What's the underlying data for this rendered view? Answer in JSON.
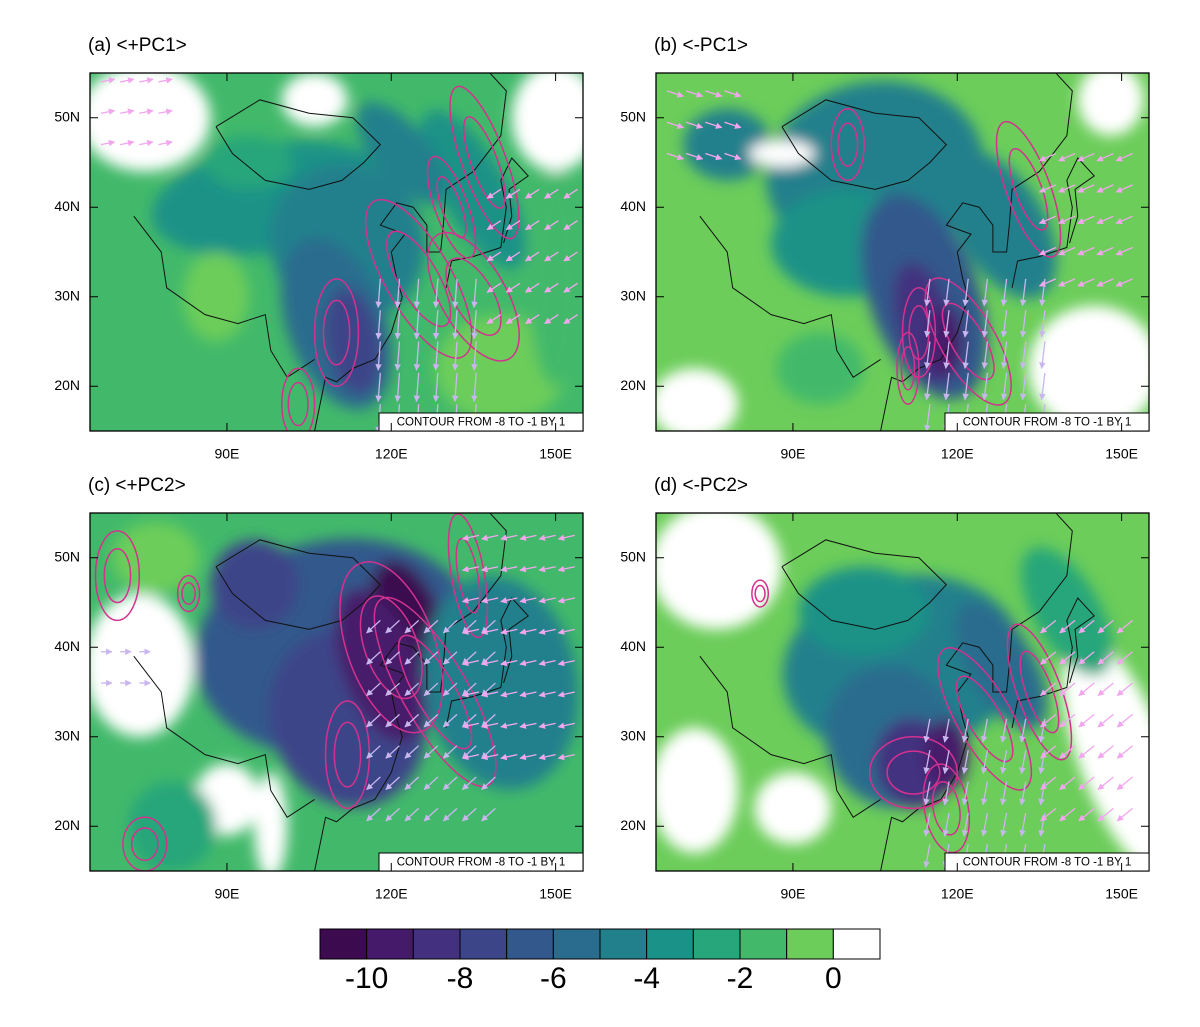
{
  "panels": [
    {
      "title": "(a) <+PC1>",
      "info": "CONTOUR FROM -8 TO -1 BY 1"
    },
    {
      "title": "(b) <-PC1>",
      "info": "CONTOUR FROM -8 TO -1 BY 1"
    },
    {
      "title": "(c) <+PC2>",
      "info": "CONTOUR FROM -8 TO -1 BY 1"
    },
    {
      "title": "(d) <-PC2>",
      "info": "CONTOUR FROM -8 TO -1 BY 1"
    }
  ],
  "axes": {
    "xlim": [
      65,
      155
    ],
    "ylim": [
      15,
      55
    ],
    "xticks": [
      {
        "value": 90,
        "label": "90E"
      },
      {
        "value": 120,
        "label": "120E"
      },
      {
        "value": 150,
        "label": "150E"
      }
    ],
    "yticks": [
      {
        "value": 20,
        "label": "20N"
      },
      {
        "value": 30,
        "label": "30N"
      },
      {
        "value": 40,
        "label": "40N"
      },
      {
        "value": 50,
        "label": "50N"
      }
    ]
  },
  "colorbar": {
    "colors": [
      "#3b0a4f",
      "#461a6b",
      "#43307f",
      "#3d4589",
      "#33598c",
      "#2a6c8e",
      "#22808c",
      "#1a9287",
      "#26a67a",
      "#42b96a",
      "#6ccd5a",
      "#ffffff"
    ],
    "ticks": [
      -10,
      -8,
      -6,
      -4,
      -2,
      0
    ]
  }
}
